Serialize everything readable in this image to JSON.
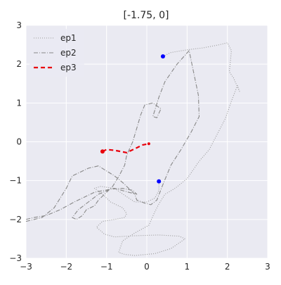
{
  "chart_data": {
    "type": "line",
    "title": "[-1.75, 0]",
    "xlabel": "",
    "ylabel": "",
    "xlim": [
      -3,
      3
    ],
    "ylim": [
      -3,
      3
    ],
    "xticks": [
      -3,
      -2,
      -1,
      0,
      1,
      2,
      3
    ],
    "yticks": [
      -3,
      -2,
      -1,
      0,
      1,
      2,
      3
    ],
    "xtick_labels": [
      "−3",
      "−2",
      "−1",
      "0",
      "1",
      "2",
      "3"
    ],
    "ytick_labels": [
      "−3",
      "−2",
      "−1",
      "0",
      "1",
      "2",
      "3"
    ],
    "grid": true,
    "legend_position": "top-left",
    "colors": {
      "background": "#eaeaf2",
      "ep1": "#999999",
      "ep2": "#888888",
      "ep3": "#e8000b",
      "marker": "#0000ff"
    },
    "series": [
      {
        "name": "ep1",
        "style": "dotted",
        "color": "#999999",
        "marker_start": "#0000ff",
        "x": [
          0.4,
          0.6,
          1.0,
          1.4,
          1.8,
          2.0,
          2.1,
          2.05,
          2.15,
          2.3,
          2.25,
          2.1,
          1.95,
          1.75,
          1.55,
          1.3,
          1.0,
          0.7,
          0.45,
          0.3,
          0.2,
          0.05,
          -0.3,
          -0.6,
          -0.7,
          -0.55,
          -0.3,
          0.2,
          0.6,
          0.95,
          0.8,
          0.3,
          -0.3,
          -0.8,
          -1.05,
          -1.25,
          -1.1,
          -0.8,
          -0.55,
          -0.5,
          -0.6,
          -0.9,
          -1.1,
          -1.3,
          -1.15,
          -0.8,
          -0.55,
          -0.3,
          0.0,
          0.2,
          0.3,
          0.3
        ],
        "y": [
          2.2,
          2.3,
          2.37,
          2.42,
          2.5,
          2.55,
          2.35,
          1.8,
          1.65,
          1.3,
          1.45,
          1.05,
          0.6,
          0.2,
          -0.2,
          -0.5,
          -0.95,
          -1.2,
          -1.35,
          -1.6,
          -1.8,
          -2.15,
          -2.35,
          -2.55,
          -2.85,
          -2.9,
          -2.93,
          -2.88,
          -2.75,
          -2.5,
          -2.43,
          -2.4,
          -2.42,
          -2.45,
          -2.38,
          -2.2,
          -2.05,
          -2.0,
          -1.95,
          -1.85,
          -1.7,
          -1.55,
          -1.35,
          -1.2,
          -1.15,
          -1.2,
          -1.38,
          -1.55,
          -1.55,
          -1.45,
          -1.25,
          -1.02
        ]
      },
      {
        "name": "ep2",
        "style": "dashdot",
        "color": "#888888",
        "x": [
          -3.0,
          -2.6,
          -2.3,
          -2.0,
          -1.85,
          -1.45,
          -1.2,
          -1.05,
          -0.8,
          -0.6,
          -0.45,
          -0.3,
          -0.25,
          -0.05,
          0.1,
          0.25,
          0.4,
          0.6,
          0.85,
          1.1,
          1.3,
          1.28,
          1.05,
          0.75,
          0.45,
          0.3,
          0.15,
          0.25,
          0.35,
          0.15,
          -0.05,
          -0.15,
          -0.25,
          -0.35,
          -0.5,
          -0.55,
          -0.7,
          -0.85,
          -1.0,
          -1.2,
          -1.3,
          -1.5,
          -1.6,
          -1.75,
          -1.85,
          -1.7,
          -1.45,
          -1.2,
          -0.9,
          -0.6,
          -0.35,
          -0.25,
          -0.45,
          -0.8,
          -1.3,
          -1.8,
          -2.15,
          -2.5,
          -2.8,
          -3.0
        ],
        "y": [
          -2.05,
          -1.95,
          -1.7,
          -1.2,
          -0.88,
          -0.68,
          -0.62,
          -0.72,
          -0.88,
          -1.05,
          -1.2,
          -1.35,
          -1.5,
          -1.58,
          -1.62,
          -1.5,
          -1.1,
          -0.6,
          -0.2,
          0.25,
          0.65,
          1.2,
          2.35,
          2.0,
          1.55,
          1.15,
          0.65,
          0.62,
          0.85,
          1.0,
          0.95,
          0.7,
          0.35,
          0.0,
          -0.35,
          -0.6,
          -0.9,
          -1.15,
          -1.3,
          -1.5,
          -1.65,
          -1.75,
          -1.9,
          -2.0,
          -1.95,
          -1.75,
          -1.55,
          -1.35,
          -1.22,
          -1.2,
          -1.25,
          -1.35,
          -1.3,
          -1.2,
          -1.3,
          -1.55,
          -1.75,
          -1.9,
          -1.95,
          -2.0
        ]
      },
      {
        "name": "ep3",
        "style": "dashed",
        "color": "#e8000b",
        "x": [
          -1.1,
          -1.0,
          -0.8,
          -0.5,
          -0.3,
          -0.1,
          0.05
        ],
        "y": [
          -0.25,
          -0.2,
          -0.22,
          -0.28,
          -0.18,
          -0.08,
          -0.05
        ],
        "marker_start": "#e8000b",
        "marker_end": "#e8000b"
      }
    ],
    "extra_points": [
      {
        "x": 0.3,
        "y": -1.02,
        "color": "#0000ff"
      }
    ]
  }
}
